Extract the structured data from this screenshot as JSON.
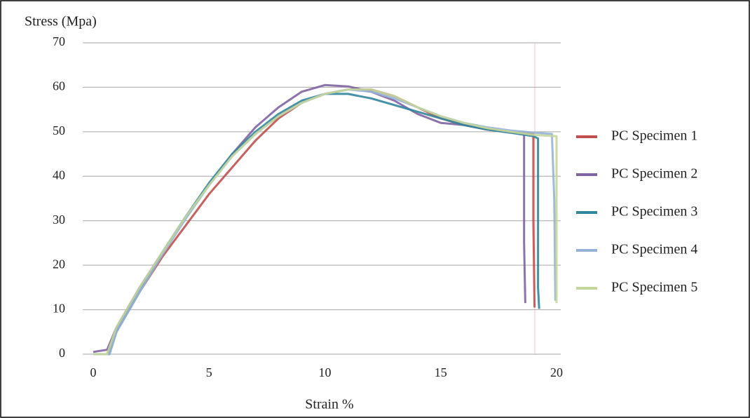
{
  "chart_data": {
    "type": "line",
    "y_label": "Stress (Mpa)",
    "x_label": "Strain %",
    "xlim": [
      0,
      20
    ],
    "xticks": [
      0,
      5,
      10,
      15,
      20
    ],
    "ylim": [
      0,
      70
    ],
    "yticks": [
      0,
      10,
      20,
      30,
      40,
      50,
      60,
      70
    ],
    "grid": true,
    "legend": "right",
    "series": [
      {
        "name": "PC Specimen 1",
        "color": "#c0504d",
        "x": [
          0,
          0.6,
          1,
          2,
          3,
          4,
          5,
          6,
          7,
          8,
          9,
          10,
          11,
          12,
          13,
          14,
          15,
          16,
          17,
          18,
          19,
          19,
          19.05
        ],
        "values": [
          0,
          0,
          5,
          14,
          22,
          29,
          36,
          42,
          48,
          53,
          56.5,
          58.5,
          59.5,
          59.5,
          58,
          55.5,
          53,
          51.5,
          50.5,
          50,
          49.5,
          30,
          10.5
        ]
      },
      {
        "name": "PC Specimen 2",
        "color": "#8064a2",
        "x": [
          0,
          0.6,
          1,
          2,
          3,
          4,
          5,
          6,
          7,
          8,
          9,
          10,
          11,
          12,
          13,
          14,
          15,
          16,
          17,
          18,
          18.6,
          18.6,
          18.65
        ],
        "values": [
          0.5,
          1,
          6,
          15,
          23,
          31,
          38,
          45,
          51,
          55.5,
          59,
          60.5,
          60.2,
          59,
          57,
          54,
          52,
          51.5,
          50.5,
          49.8,
          49.5,
          25,
          11.5
        ]
      },
      {
        "name": "PC Specimen 3",
        "color": "#31859c",
        "x": [
          0,
          0.7,
          1,
          2,
          3,
          4,
          5,
          6,
          7,
          8,
          9,
          10,
          11,
          12,
          13,
          14,
          15,
          16,
          17,
          18,
          19,
          19.2,
          19.2,
          19.25
        ],
        "values": [
          0,
          0,
          5,
          14,
          23,
          31,
          38.5,
          45,
          50,
          54,
          57,
          58.5,
          58.5,
          57.5,
          56,
          54.5,
          53,
          51.5,
          50.5,
          49.8,
          49,
          48.5,
          15,
          10.2
        ]
      },
      {
        "name": "PC Specimen 4",
        "color": "#95b3d7",
        "x": [
          0,
          0.7,
          1,
          2,
          3,
          4,
          5,
          6,
          7,
          8,
          9,
          10,
          11,
          12,
          13,
          14,
          15,
          16,
          17,
          18,
          19,
          19.8,
          19.9,
          19.95
        ],
        "values": [
          0,
          0,
          5,
          14,
          22.5,
          30.5,
          38,
          44.5,
          49.5,
          53.5,
          56.5,
          58.5,
          59.5,
          59,
          57.5,
          55.5,
          53.5,
          52,
          51,
          50.3,
          49.8,
          49.5,
          35,
          12
        ]
      },
      {
        "name": "PC Specimen 5",
        "color": "#c3d69b",
        "x": [
          0,
          0.6,
          1,
          2,
          3,
          4,
          5,
          6,
          7,
          8,
          9,
          10,
          11,
          12,
          13,
          14,
          15,
          16,
          17,
          18,
          19,
          20,
          20
        ],
        "values": [
          0,
          0,
          6,
          15,
          23,
          31,
          38,
          44.5,
          49.5,
          53.5,
          56.5,
          58.5,
          59.5,
          59.5,
          58,
          55.5,
          53.5,
          52,
          50.8,
          50,
          49.3,
          49,
          11.5
        ]
      }
    ]
  }
}
